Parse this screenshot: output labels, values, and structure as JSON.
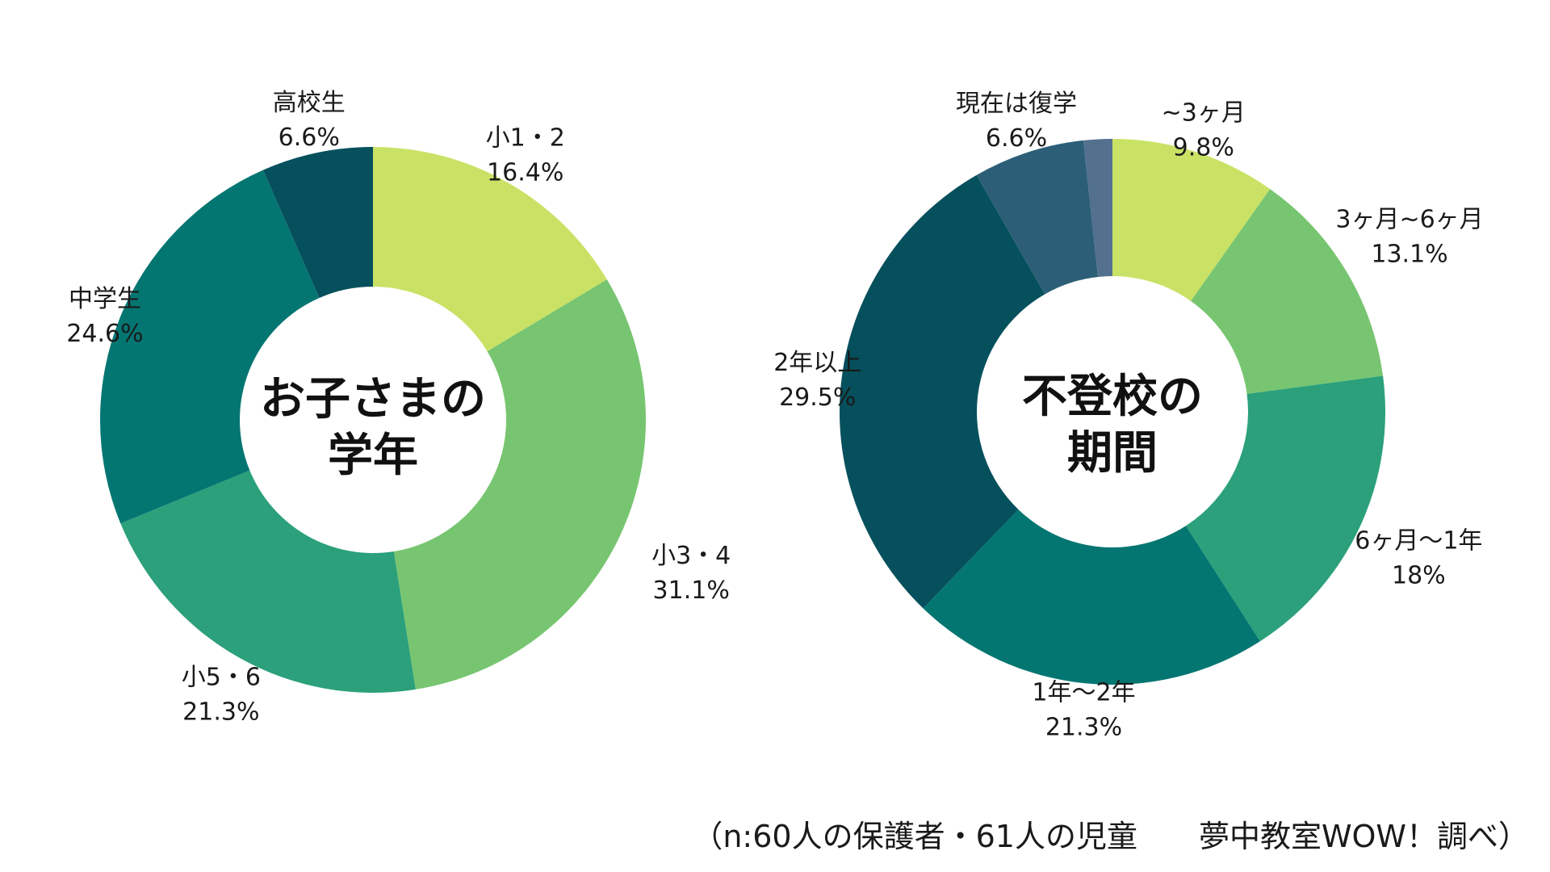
{
  "chart_data": [
    {
      "type": "pie",
      "center_title": [
        "お子さまの",
        "学年"
      ],
      "categories": [
        "小1・2",
        "小3・4",
        "小5・6",
        "中学生",
        "高校生"
      ],
      "values": [
        16.4,
        31.1,
        21.3,
        24.6,
        6.6
      ],
      "value_labels": [
        "16.4%",
        "31.1%",
        "21.3%",
        "24.6%",
        "6.6%"
      ],
      "colors": [
        "#c9e265",
        "#78c571",
        "#2ba07b",
        "#047672",
        "#05505c"
      ]
    },
    {
      "type": "pie",
      "center_title": [
        "不登校の",
        "期間"
      ],
      "categories": [
        "~3ヶ月",
        "3ヶ月~6ヶ月",
        "6ヶ月〜1年",
        "1年〜2年",
        "2年以上",
        "現在は復学"
      ],
      "values": [
        9.8,
        13.1,
        18,
        21.3,
        29.5,
        6.6
      ],
      "value_labels": [
        "9.8%",
        "13.1%",
        "18%",
        "21.3%",
        "29.5%",
        "6.6%"
      ],
      "unlabeled_segment": 1.7,
      "colors": [
        "#c9e265",
        "#78c571",
        "#2ba07b",
        "#047672",
        "#05505c",
        "#2c5f77",
        "#54708f"
      ]
    }
  ],
  "footer": "（n:60人の保護者・61人の児童　　夢中教室WOW！調べ）"
}
